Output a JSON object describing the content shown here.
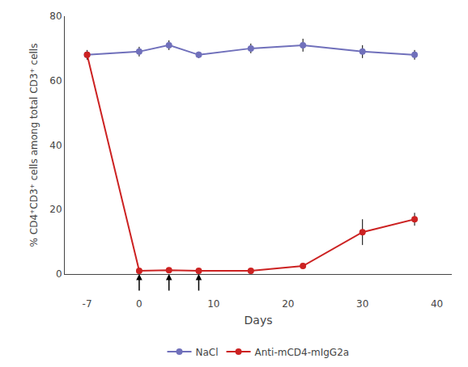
{
  "chart_data": {
    "type": "line",
    "ylabel": "% CD4⁺CD3⁺ cells among total CD3⁺ cells",
    "xlabel": "Days",
    "x": [
      -7,
      0,
      4,
      8,
      15,
      22,
      30,
      37
    ],
    "series": [
      {
        "name": "NaCl",
        "color": "#7070BB",
        "values": [
          68.0,
          69.0,
          71.0,
          68.0,
          70.0,
          71.0,
          69.0,
          68.0
        ],
        "errors": [
          1.5,
          1.5,
          1.5,
          1.0,
          1.5,
          2.0,
          2.0,
          1.5
        ]
      },
      {
        "name": "Anti-mCD4-mIgG2a",
        "color": "#CC2222",
        "values": [
          68.0,
          1.0,
          1.2,
          1.0,
          1.0,
          2.5,
          13.0,
          17.0
        ],
        "errors": [
          1.0,
          0.5,
          0.5,
          0.5,
          0.5,
          0.5,
          4.0,
          2.0
        ]
      }
    ],
    "arrows": [
      0,
      4,
      8
    ],
    "xlim": [
      -10,
      42
    ],
    "ylim": [
      0,
      80
    ],
    "xticks": [
      -7,
      0,
      10,
      20,
      30,
      40
    ],
    "yticks": [
      0,
      20,
      40,
      60,
      80
    ],
    "grid": false,
    "legend": "bottom",
    "marker": "circle"
  }
}
